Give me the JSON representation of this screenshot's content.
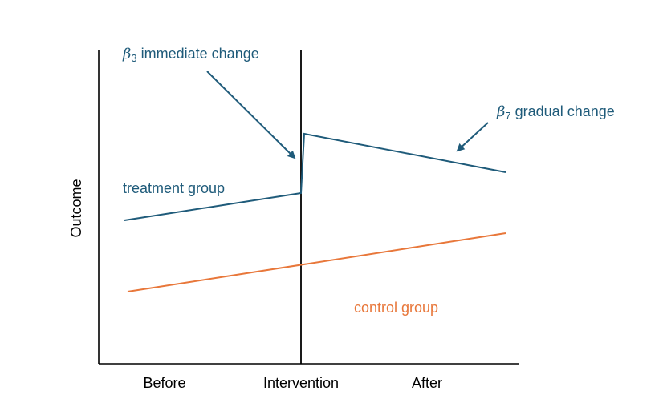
{
  "labels": {
    "y_axis": "Outcome",
    "before": "Before",
    "intervention": "Intervention",
    "after": "After",
    "treatment_group": "treatment group",
    "control_group": "control group"
  },
  "annotations": {
    "immediate": {
      "symbol": "β",
      "sub": "3",
      "text": " immediate change"
    },
    "gradual": {
      "symbol": "β",
      "sub": "7",
      "text": " gradual change"
    }
  },
  "colors": {
    "treatment": "#1F5B7A",
    "control": "#E8773A",
    "axis": "#000000",
    "text": "#000000"
  }
}
